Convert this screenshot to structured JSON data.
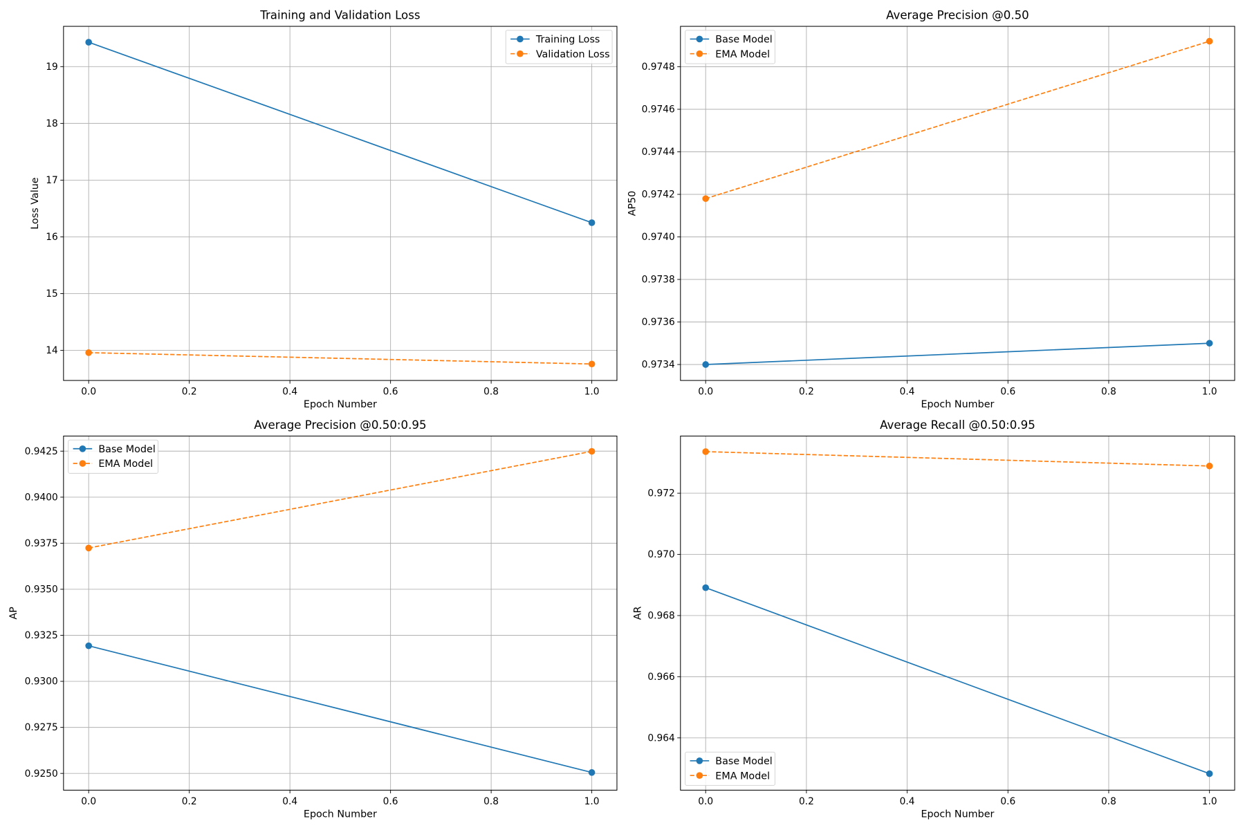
{
  "colors": {
    "series1": "#1f77b4",
    "series2": "#ff7f0e",
    "grid": "#b0b0b0"
  },
  "chart_data": [
    {
      "type": "line",
      "title": "Training and Validation Loss",
      "xlabel": "Epoch Number",
      "ylabel": "Loss Value",
      "x": [
        0,
        1
      ],
      "xlim": [
        -0.05,
        1.05
      ],
      "ylim": [
        13.47,
        19.71
      ],
      "xticks": [
        "0.0",
        "0.2",
        "0.4",
        "0.6",
        "0.8",
        "1.0"
      ],
      "yticks": [
        "14",
        "15",
        "16",
        "17",
        "18",
        "19"
      ],
      "grid": true,
      "legend": "upper-right",
      "series": [
        {
          "name": "Training Loss",
          "values": [
            19.43,
            16.25
          ],
          "style": "solid"
        },
        {
          "name": "Validation Loss",
          "values": [
            13.96,
            13.76
          ],
          "style": "dashed"
        }
      ]
    },
    {
      "type": "line",
      "title": "Average Precision @0.50",
      "xlabel": "Epoch Number",
      "ylabel": "AP50",
      "x": [
        0,
        1
      ],
      "xlim": [
        -0.05,
        1.05
      ],
      "ylim": [
        0.973325,
        0.97499
      ],
      "xticks": [
        "0.0",
        "0.2",
        "0.4",
        "0.6",
        "0.8",
        "1.0"
      ],
      "yticks": [
        "0.9734",
        "0.9736",
        "0.9738",
        "0.9740",
        "0.9742",
        "0.9744",
        "0.9746",
        "0.9748"
      ],
      "grid": true,
      "legend": "upper-left",
      "series": [
        {
          "name": "Base Model",
          "values": [
            0.9734,
            0.9735
          ],
          "style": "solid"
        },
        {
          "name": "EMA Model",
          "values": [
            0.97418,
            0.97492
          ],
          "style": "dashed"
        }
      ]
    },
    {
      "type": "line",
      "title": "Average Precision @0.50:0.95",
      "xlabel": "Epoch Number",
      "ylabel": "AP",
      "x": [
        0,
        1
      ],
      "xlim": [
        -0.05,
        1.05
      ],
      "ylim": [
        0.92409,
        0.94332
      ],
      "xticks": [
        "0.0",
        "0.2",
        "0.4",
        "0.6",
        "0.8",
        "1.0"
      ],
      "yticks": [
        "0.9250",
        "0.9275",
        "0.9300",
        "0.9325",
        "0.9350",
        "0.9375",
        "0.9400",
        "0.9425"
      ],
      "grid": true,
      "legend": "upper-left",
      "series": [
        {
          "name": "Base Model",
          "values": [
            0.93193,
            0.92505
          ],
          "style": "solid"
        },
        {
          "name": "EMA Model",
          "values": [
            0.93724,
            0.94249
          ],
          "style": "dashed"
        }
      ]
    },
    {
      "type": "line",
      "title": "Average Recall @0.50:0.95",
      "xlabel": "Epoch Number",
      "ylabel": "AR",
      "x": [
        0,
        1
      ],
      "xlim": [
        -0.05,
        1.05
      ],
      "ylim": [
        0.96229,
        0.97387
      ],
      "xticks": [
        "0.0",
        "0.2",
        "0.4",
        "0.6",
        "0.8",
        "1.0"
      ],
      "yticks": [
        "0.964",
        "0.966",
        "0.968",
        "0.970",
        "0.972"
      ],
      "grid": true,
      "legend": "lower-left",
      "series": [
        {
          "name": "Base Model",
          "values": [
            0.96891,
            0.96283
          ],
          "style": "solid"
        },
        {
          "name": "EMA Model",
          "values": [
            0.97336,
            0.97289
          ],
          "style": "dashed"
        }
      ]
    }
  ]
}
